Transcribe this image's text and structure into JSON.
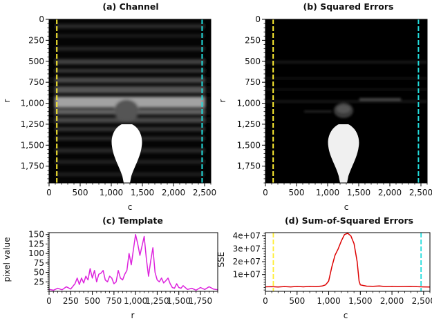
{
  "chart_data": [
    {
      "id": "channel",
      "type": "heatmap",
      "title": "(a) Channel",
      "xlabel": "c",
      "ylabel": "r",
      "xlim": [
        0,
        2600
      ],
      "ylim": [
        1950,
        0
      ],
      "xticks": [
        0,
        500,
        1000,
        1500,
        2000,
        2500
      ],
      "xtick_labels": [
        "0",
        "500",
        "1,000",
        "1,500",
        "2,000",
        "2,500"
      ],
      "yticks": [
        0,
        250,
        500,
        750,
        1000,
        1250,
        1500,
        1750
      ],
      "ytick_labels": [
        "0",
        "250",
        "500",
        "750",
        "1,000",
        "1,250",
        "1,500",
        "1,750"
      ],
      "colormap": "grayscale",
      "vlines": [
        {
          "x": 125,
          "color": "#ffee33",
          "style": "dashed"
        },
        {
          "x": 2460,
          "color": "#22dddd",
          "style": "dashed"
        }
      ]
    },
    {
      "id": "squared-errors",
      "type": "heatmap",
      "title": "(b) Squared Errors",
      "xlabel": "c",
      "ylabel": "r",
      "xlim": [
        0,
        2600
      ],
      "ylim": [
        1950,
        0
      ],
      "xticks": [
        0,
        500,
        1000,
        1500,
        2000,
        2500
      ],
      "xtick_labels": [
        "0",
        "500",
        "1,000",
        "1,500",
        "2,000",
        "2,500"
      ],
      "yticks": [
        0,
        250,
        500,
        750,
        1000,
        1250,
        1500,
        1750
      ],
      "ytick_labels": [
        "0",
        "250",
        "500",
        "750",
        "1,000",
        "1,250",
        "1,500",
        "1,750"
      ],
      "colormap": "grayscale",
      "vlines": [
        {
          "x": 125,
          "color": "#ffee33",
          "style": "dashed"
        },
        {
          "x": 2460,
          "color": "#22dddd",
          "style": "dashed"
        }
      ]
    },
    {
      "id": "template",
      "type": "line",
      "title": "(c) Template",
      "xlabel": "r",
      "ylabel": "pixel value",
      "xlim": [
        0,
        1950
      ],
      "ylim": [
        0,
        155
      ],
      "xticks": [
        0,
        250,
        500,
        750,
        1000,
        1250,
        1500,
        1750
      ],
      "xtick_labels": [
        "0",
        "250",
        "500",
        "750",
        "1,000",
        "1,250",
        "1,500",
        "1,750"
      ],
      "yticks": [
        25,
        50,
        75,
        100,
        125,
        150
      ],
      "ytick_labels": [
        "25",
        "50",
        "75",
        "100",
        "125",
        "150"
      ],
      "color": "#dd22dd",
      "x": [
        0,
        50,
        100,
        150,
        200,
        250,
        300,
        325,
        350,
        375,
        400,
        425,
        450,
        475,
        500,
        525,
        550,
        575,
        600,
        625,
        650,
        675,
        700,
        725,
        750,
        775,
        800,
        825,
        850,
        875,
        900,
        925,
        950,
        975,
        1000,
        1025,
        1050,
        1075,
        1100,
        1125,
        1150,
        1175,
        1200,
        1225,
        1250,
        1275,
        1300,
        1325,
        1350,
        1375,
        1400,
        1425,
        1450,
        1475,
        1500,
        1525,
        1550,
        1600,
        1650,
        1700,
        1750,
        1800,
        1850,
        1900,
        1950
      ],
      "y": [
        5,
        3,
        8,
        4,
        12,
        6,
        20,
        35,
        18,
        35,
        22,
        40,
        30,
        60,
        35,
        55,
        25,
        45,
        48,
        55,
        30,
        25,
        40,
        35,
        20,
        25,
        55,
        35,
        30,
        45,
        55,
        100,
        70,
        110,
        150,
        125,
        95,
        120,
        145,
        85,
        40,
        80,
        115,
        50,
        30,
        25,
        35,
        22,
        28,
        35,
        20,
        10,
        8,
        20,
        10,
        8,
        15,
        5,
        8,
        3,
        10,
        5,
        12,
        6,
        4
      ]
    },
    {
      "id": "sse",
      "type": "line",
      "title": "(d) Sum-of-Squared Errors",
      "xlabel": "c",
      "ylabel": "SSE",
      "xlim": [
        0,
        2600
      ],
      "ylim": [
        -3000000,
        42500000
      ],
      "xticks": [
        0,
        500,
        1000,
        1500,
        2000,
        2500
      ],
      "xtick_labels": [
        "0",
        "500",
        "1,000",
        "1,500",
        "2,000",
        "2,500"
      ],
      "yticks": [
        10000000,
        20000000,
        30000000,
        40000000
      ],
      "ytick_labels": [
        "1e+07",
        "2e+07",
        "3e+07",
        "4e+07"
      ],
      "color": "#dd0000",
      "x": [
        0,
        100,
        200,
        300,
        400,
        500,
        600,
        700,
        800,
        900,
        950,
        1000,
        1050,
        1100,
        1150,
        1200,
        1250,
        1300,
        1350,
        1400,
        1450,
        1480,
        1500,
        1550,
        1600,
        1700,
        1800,
        1900,
        2000,
        2100,
        2200,
        2300,
        2400,
        2500,
        2600
      ],
      "y": [
        500000,
        600000,
        300000,
        700000,
        400000,
        800000,
        500000,
        900000,
        600000,
        1200000,
        2000000,
        5000000,
        16000000,
        25000000,
        30000000,
        36000000,
        41000000,
        42000000,
        40000000,
        34000000,
        20000000,
        5000000,
        2000000,
        1500000,
        1000000,
        900000,
        1200000,
        700000,
        900000,
        600000,
        800000,
        900000,
        600000,
        400000,
        300000
      ],
      "vlines": [
        {
          "x": 125,
          "color": "#ffee33",
          "style": "dashed"
        },
        {
          "x": 2460,
          "color": "#22dddd",
          "style": "dashed"
        }
      ]
    }
  ]
}
